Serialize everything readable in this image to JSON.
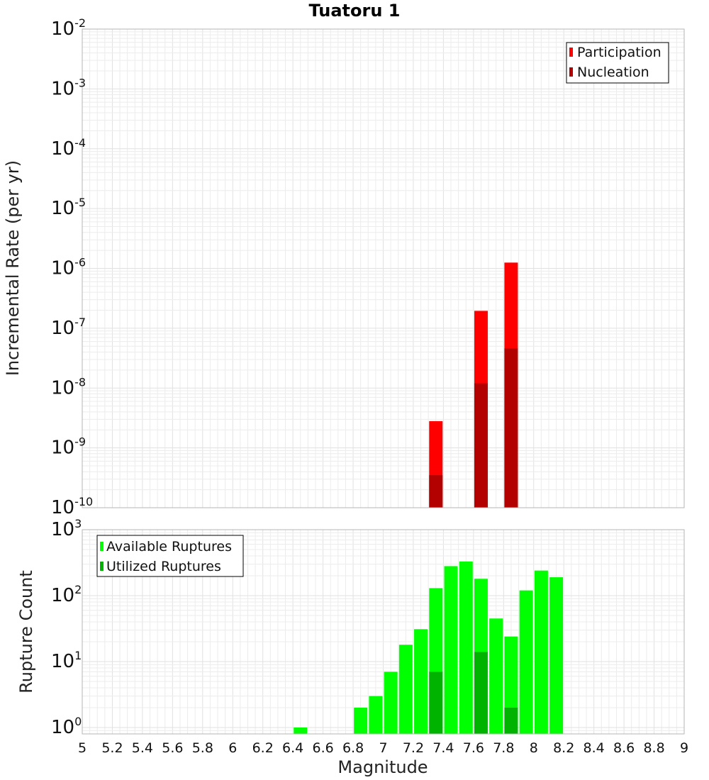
{
  "chart_data": [
    {
      "id": "top",
      "type": "bar",
      "title": "Tuatoru 1",
      "xlabel": "Magnitude",
      "ylabel": "Incremental Rate (per yr)",
      "yscale": "log",
      "ylim": [
        1e-10,
        0.01
      ],
      "xlim": [
        5,
        9
      ],
      "ytick_exponents": [
        -10,
        -9,
        -8,
        -7,
        -6,
        -5,
        -4,
        -3,
        -2
      ],
      "legend_position": "top-right",
      "series": [
        {
          "name": "Participation",
          "color": "#ff0000",
          "points": [
            {
              "x": 7.35,
              "y": 2.8e-09
            },
            {
              "x": 7.65,
              "y": 1.95e-07
            },
            {
              "x": 7.85,
              "y": 1.25e-06
            }
          ]
        },
        {
          "name": "Nucleation",
          "color": "#b30000",
          "points": [
            {
              "x": 7.35,
              "y": 3.5e-10
            },
            {
              "x": 7.65,
              "y": 1.2e-08
            },
            {
              "x": 7.85,
              "y": 4.6e-08
            }
          ]
        }
      ]
    },
    {
      "id": "bottom",
      "type": "bar",
      "xlabel": "Magnitude",
      "ylabel": "Rupture Count",
      "yscale": "log",
      "ylim": [
        0.8,
        1000
      ],
      "xlim": [
        5,
        9
      ],
      "ytick_exponents": [
        0,
        1,
        2,
        3
      ],
      "xticks": [
        "5",
        "5.2",
        "5.4",
        "5.6",
        "5.8",
        "6",
        "6.2",
        "6.4",
        "6.6",
        "6.8",
        "7",
        "7.2",
        "7.4",
        "7.6",
        "7.8",
        "8",
        "8.2",
        "8.4",
        "8.6",
        "8.8",
        "9"
      ],
      "legend_position": "top-left",
      "series": [
        {
          "name": "Available Ruptures",
          "color": "#00ff00",
          "points": [
            {
              "x": 6.45,
              "y": 1
            },
            {
              "x": 6.85,
              "y": 2
            },
            {
              "x": 6.95,
              "y": 3
            },
            {
              "x": 7.05,
              "y": 7
            },
            {
              "x": 7.15,
              "y": 18
            },
            {
              "x": 7.25,
              "y": 31
            },
            {
              "x": 7.35,
              "y": 130
            },
            {
              "x": 7.45,
              "y": 280
            },
            {
              "x": 7.55,
              "y": 330
            },
            {
              "x": 7.65,
              "y": 180
            },
            {
              "x": 7.75,
              "y": 45
            },
            {
              "x": 7.85,
              "y": 24
            },
            {
              "x": 7.95,
              "y": 120
            },
            {
              "x": 8.05,
              "y": 240
            },
            {
              "x": 8.15,
              "y": 190
            }
          ]
        },
        {
          "name": "Utilized Ruptures",
          "color": "#00b300",
          "points": [
            {
              "x": 7.35,
              "y": 7
            },
            {
              "x": 7.65,
              "y": 14
            },
            {
              "x": 7.85,
              "y": 2
            }
          ]
        }
      ]
    }
  ]
}
